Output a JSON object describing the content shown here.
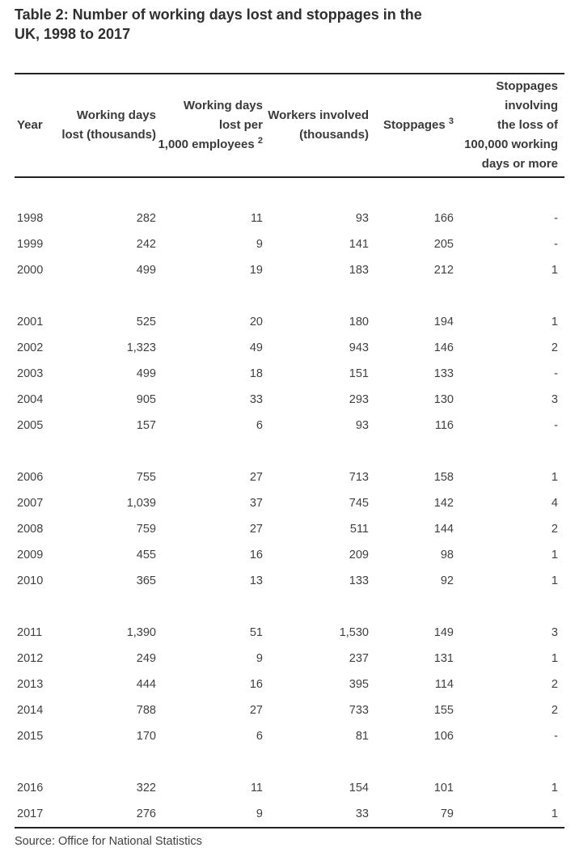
{
  "page": {
    "title": "Table 2: Number of working days lost and stoppages in the\nUK, 1998 to 2017",
    "source": "Source: Office for National Statistics"
  },
  "colors": {
    "background": "#ffffff",
    "title_text": "#2f2f31",
    "header_text": "#3a3a3a",
    "body_text": "#414042",
    "rule": "#222222"
  },
  "table": {
    "columns": [
      {
        "key": "year",
        "align": "left",
        "lines": [
          "Year"
        ]
      },
      {
        "key": "working-days-lost",
        "align": "right",
        "lines": [
          "Working days",
          "lost (thousands)"
        ]
      },
      {
        "key": "days-lost-per-1000-employees",
        "align": "right",
        "lines": [
          "Working days",
          "lost per",
          "1,000 employees"
        ],
        "sup": "2"
      },
      {
        "key": "workers-involved",
        "align": "right",
        "lines": [
          "Workers involved",
          "(thousands)"
        ]
      },
      {
        "key": "stoppages",
        "align": "right",
        "lines": [
          "Stoppages"
        ],
        "sup": "3"
      },
      {
        "key": "large-stoppages",
        "align": "right",
        "lines": [
          "Stoppages",
          "involving",
          "the loss of",
          "100,000 working",
          "days or more"
        ]
      }
    ],
    "row_groups": [
      [
        [
          "1998",
          "282",
          "11",
          "93",
          "166",
          "-"
        ],
        [
          "1999",
          "242",
          "9",
          "141",
          "205",
          "-"
        ],
        [
          "2000",
          "499",
          "19",
          "183",
          "212",
          "1"
        ]
      ],
      [
        [
          "2001",
          "525",
          "20",
          "180",
          "194",
          "1"
        ],
        [
          "2002",
          "1,323",
          "49",
          "943",
          "146",
          "2"
        ],
        [
          "2003",
          "499",
          "18",
          "151",
          "133",
          "-"
        ],
        [
          "2004",
          "905",
          "33",
          "293",
          "130",
          "3"
        ],
        [
          "2005",
          "157",
          "6",
          "93",
          "116",
          "-"
        ]
      ],
      [
        [
          "2006",
          "755",
          "27",
          "713",
          "158",
          "1"
        ],
        [
          "2007",
          "1,039",
          "37",
          "745",
          "142",
          "4"
        ],
        [
          "2008",
          "759",
          "27",
          "511",
          "144",
          "2"
        ],
        [
          "2009",
          "455",
          "16",
          "209",
          "98",
          "1"
        ],
        [
          "2010",
          "365",
          "13",
          "133",
          "92",
          "1"
        ]
      ],
      [
        [
          "2011",
          "1,390",
          "51",
          "1,530",
          "149",
          "3"
        ],
        [
          "2012",
          "249",
          "9",
          "237",
          "131",
          "1"
        ],
        [
          "2013",
          "444",
          "16",
          "395",
          "114",
          "2"
        ],
        [
          "2014",
          "788",
          "27",
          "733",
          "155",
          "2"
        ],
        [
          "2015",
          "170",
          "6",
          "81",
          "106",
          "-"
        ]
      ],
      [
        [
          "2016",
          "322",
          "11",
          "154",
          "101",
          "1"
        ],
        [
          "2017",
          "276",
          "9",
          "33",
          "79",
          "1"
        ]
      ]
    ]
  },
  "chart_data": {
    "type": "table",
    "title": "Table 2: Number of working days lost and stoppages in the UK, 1998 to 2017",
    "categories": [
      "1998",
      "1999",
      "2000",
      "2001",
      "2002",
      "2003",
      "2004",
      "2005",
      "2006",
      "2007",
      "2008",
      "2009",
      "2010",
      "2011",
      "2012",
      "2013",
      "2014",
      "2015",
      "2016",
      "2017"
    ],
    "series": [
      {
        "name": "Working days lost (thousands)",
        "values": [
          282,
          242,
          499,
          525,
          1323,
          499,
          905,
          157,
          755,
          1039,
          759,
          455,
          365,
          1390,
          249,
          444,
          788,
          170,
          322,
          276
        ]
      },
      {
        "name": "Working days lost per 1,000 employees ²",
        "values": [
          11,
          9,
          19,
          20,
          49,
          18,
          33,
          6,
          27,
          37,
          27,
          16,
          13,
          51,
          9,
          16,
          27,
          6,
          11,
          9
        ]
      },
      {
        "name": "Workers involved (thousands)",
        "values": [
          93,
          141,
          183,
          180,
          943,
          151,
          293,
          93,
          713,
          745,
          511,
          209,
          133,
          1530,
          237,
          395,
          733,
          81,
          154,
          33
        ]
      },
      {
        "name": "Stoppages ³",
        "values": [
          166,
          205,
          212,
          194,
          146,
          133,
          130,
          116,
          158,
          142,
          144,
          98,
          92,
          149,
          131,
          114,
          155,
          106,
          101,
          79
        ]
      },
      {
        "name": "Stoppages involving the loss of 100,000 working days or more",
        "values": [
          "-",
          "-",
          1,
          1,
          2,
          "-",
          3,
          "-",
          1,
          4,
          2,
          1,
          1,
          3,
          1,
          2,
          2,
          "-",
          1,
          1
        ]
      }
    ],
    "source": "Office for National Statistics"
  }
}
